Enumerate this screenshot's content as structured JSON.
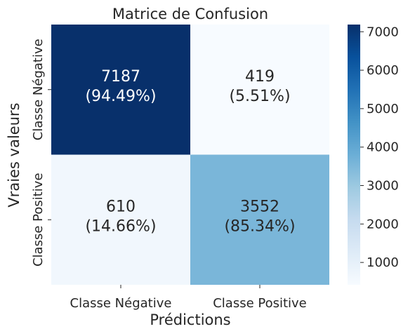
{
  "chart_data": {
    "type": "heatmap",
    "title": "Matrice de Confusion",
    "xlabel": "Prédictions",
    "ylabel": "Vraies valeurs",
    "x_categories": [
      "Classe Négative",
      "Classe Positive"
    ],
    "y_categories": [
      "Classe Négative",
      "Classe Positive"
    ],
    "values": [
      [
        7187,
        419
      ],
      [
        610,
        3552
      ]
    ],
    "cell_labels": [
      [
        "7187\n(94.49%)",
        "419\n(5.51%)"
      ],
      [
        "610\n(14.66%)",
        "3552\n(85.34%)"
      ]
    ],
    "colorbar": {
      "colormap": "Blues",
      "range": [
        419,
        7187
      ],
      "ticks": [
        1000,
        2000,
        3000,
        4000,
        5000,
        6000,
        7000
      ]
    },
    "colors": {
      "low": "#f7fbff",
      "high": "#08306b"
    }
  }
}
